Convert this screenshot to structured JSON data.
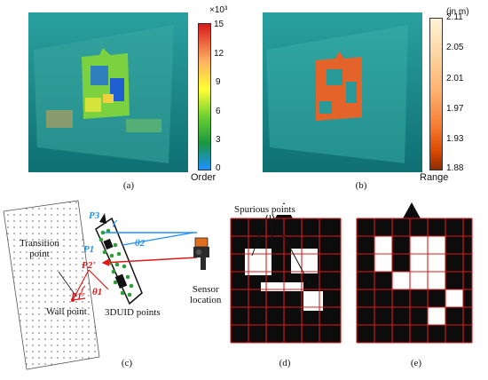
{
  "panels": {
    "a": {
      "label": "(a)"
    },
    "b": {
      "label": "(b)"
    },
    "c": {
      "label": "(c)"
    },
    "d": {
      "label": "(d)"
    },
    "e": {
      "label": "(e)"
    }
  },
  "colorbar_order": {
    "exponent": "×10³",
    "ticks": [
      "15",
      "12",
      "9",
      "6",
      "3",
      "0"
    ],
    "axis_label": "Order",
    "colors": [
      "#d7191c",
      "#fdae61",
      "#ffff33",
      "#66cc33",
      "#1a9641",
      "#1e90ff"
    ]
  },
  "colorbar_range": {
    "unit": "(in m)",
    "ticks": [
      "2.11",
      "2.05",
      "2.01",
      "1.97",
      "1.93",
      "1.88"
    ],
    "axis_label": "Range",
    "colors": [
      "#fff3d6",
      "#fdd49e",
      "#fdae6b",
      "#f47a2f",
      "#d94801",
      "#8c2d04"
    ]
  },
  "diagram_c": {
    "transition_point": "Transition\npoint",
    "wall_point": "Wall point",
    "sensor_location": "Sensor\nlocation",
    "points_3duid": "3DUID points",
    "p3": "P3",
    "p1": "P1",
    "p2prime": "P2'",
    "p1prime": "P1'",
    "theta1": "θ1",
    "theta2": "θ2"
  },
  "diagram_d": {
    "spurious_points": "Spurious points"
  },
  "colors": {
    "teal_bg": "#1f8a8a",
    "grid_red": "#e01818",
    "blue_ray": "#1e90ff",
    "red_ray": "#e01818"
  }
}
